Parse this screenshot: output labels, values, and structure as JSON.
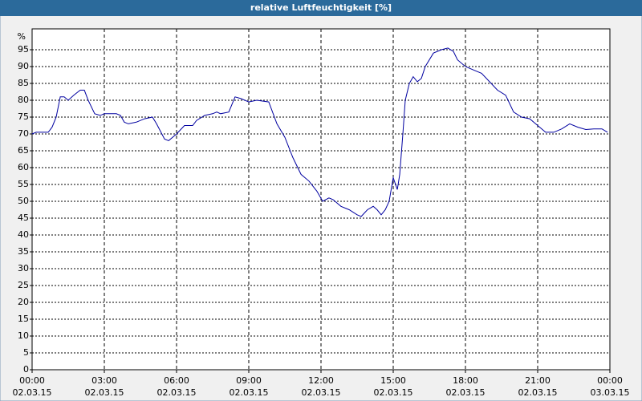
{
  "chart_data": {
    "type": "line",
    "title": "relative Luftfeuchtigkeit [%]",
    "y_unit": "%",
    "xlim": [
      0,
      24
    ],
    "ylim": [
      0,
      100
    ],
    "xticks": [
      {
        "value": 0,
        "label": "00:00",
        "date": "02.03.15"
      },
      {
        "value": 3,
        "label": "03:00",
        "date": "02.03.15"
      },
      {
        "value": 6,
        "label": "06:00",
        "date": "02.03.15"
      },
      {
        "value": 9,
        "label": "09:00",
        "date": "02.03.15"
      },
      {
        "value": 12,
        "label": "12:00",
        "date": "02.03.15"
      },
      {
        "value": 15,
        "label": "15:00",
        "date": "02.03.15"
      },
      {
        "value": 18,
        "label": "18:00",
        "date": "02.03.15"
      },
      {
        "value": 21,
        "label": "21:00",
        "date": "02.03.15"
      },
      {
        "value": 24,
        "label": "00:00",
        "date": "03.03.15"
      }
    ],
    "yticks": [
      0,
      5,
      10,
      15,
      20,
      25,
      30,
      35,
      40,
      45,
      50,
      55,
      60,
      65,
      70,
      75,
      80,
      85,
      90,
      95
    ],
    "grid": true,
    "color": "#0000a0",
    "x": [
      0,
      0.17,
      0.67,
      0.83,
      1,
      1.17,
      1.33,
      1.5,
      1.73,
      2,
      2.17,
      2.33,
      2.6,
      2.83,
      3,
      3.5,
      3.67,
      3.83,
      4,
      4.33,
      4.67,
      5,
      5.17,
      5.5,
      5.67,
      6,
      6.33,
      6.67,
      6.83,
      7.17,
      7.5,
      7.67,
      7.83,
      8.17,
      8.43,
      8.67,
      9,
      9.33,
      9.83,
      10.17,
      10.5,
      10.83,
      11.17,
      11.5,
      11.83,
      12.07,
      12.33,
      12.5,
      12.83,
      13.17,
      13.5,
      13.67,
      13.93,
      14.17,
      14.33,
      14.5,
      14.67,
      14.83,
      15,
      15.17,
      15.27,
      15.4,
      15.5,
      15.67,
      15.83,
      16,
      16.17,
      16.33,
      16.67,
      17,
      17.27,
      17.5,
      17.67,
      18,
      18.33,
      18.67,
      19,
      19.33,
      19.67,
      20,
      20.33,
      20.67,
      21,
      21.33,
      21.67,
      22,
      22.33,
      22.67,
      23,
      23.33,
      23.67,
      23.9
    ],
    "values": [
      70,
      70.5,
      70.5,
      72,
      75,
      81,
      81,
      80,
      81.5,
      83,
      83,
      80,
      76,
      75.5,
      76,
      76,
      75.5,
      73.5,
      73,
      73.5,
      74.5,
      75,
      73,
      68.5,
      68,
      70,
      72.5,
      72.5,
      74,
      75.5,
      76,
      76.5,
      76,
      76.5,
      81,
      80.5,
      79.5,
      80,
      79.5,
      73,
      69,
      63,
      58,
      56,
      53,
      50,
      51,
      50.5,
      48.5,
      47.5,
      46,
      45.5,
      47.5,
      48.5,
      47.5,
      46,
      47.5,
      50,
      57,
      53.5,
      58,
      70,
      80,
      85,
      87,
      85.5,
      86.5,
      90,
      94,
      95,
      95.5,
      94.5,
      92,
      90,
      89,
      88,
      85.5,
      83,
      81.5,
      76.5,
      75,
      74.5,
      72.5,
      70.5,
      70.5,
      71.5,
      73,
      72,
      71.3,
      71.5,
      71.5,
      70.5
    ]
  }
}
